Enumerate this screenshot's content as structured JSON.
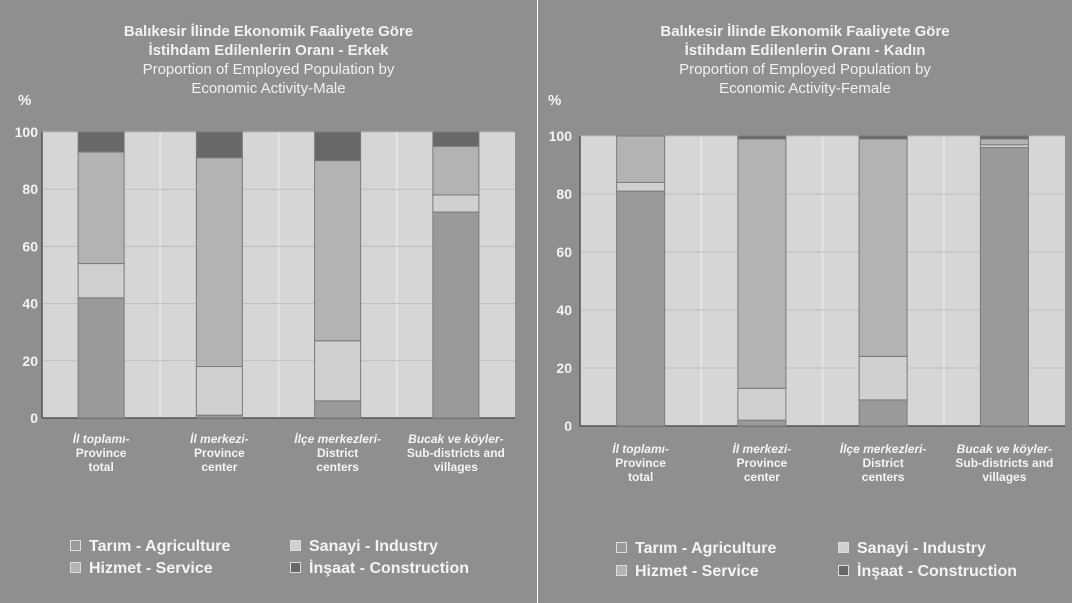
{
  "y_axis_symbol": "%",
  "colors": {
    "agriculture": "#9a9a9a",
    "industry": "#d0d0d0",
    "service": "#b3b3b3",
    "construction": "#686868",
    "plot_bg": "#d6d6d6"
  },
  "legend": {
    "agriculture": "Tarım - Agriculture",
    "industry": "Sanayi - Industry",
    "service": "Hizmet - Service",
    "construction": "İnşaat - Construction"
  },
  "chart_data": [
    {
      "type": "bar",
      "stacked": true,
      "title_tr_line1": "Balıkesir İlinde Ekonomik Faaliyete Göre",
      "title_tr_line2": "İstihdam Edilenlerin Oranı - Erkek",
      "title_en_line1": "Proportion of Employed Population by",
      "title_en_line2": "Economic Activity-Male",
      "ylim": [
        0,
        100
      ],
      "y_ticks": [
        "0",
        "20",
        "40",
        "60",
        "80",
        "100"
      ],
      "categories": [
        {
          "tr": "İl toplamı-",
          "en1": "Province",
          "en2": "total"
        },
        {
          "tr": "İl merkezi-",
          "en1": "Province",
          "en2": "center"
        },
        {
          "tr": "İlçe merkezleri-",
          "en1": "District",
          "en2": "centers"
        },
        {
          "tr": "Bucak ve köyler-",
          "en1": "Sub-districts and",
          "en2": "villages"
        }
      ],
      "series": [
        {
          "name": "Tarım - Agriculture",
          "values": [
            42,
            1,
            6,
            72
          ]
        },
        {
          "name": "Sanayi - Industry",
          "values": [
            12,
            17,
            21,
            6
          ]
        },
        {
          "name": "Hizmet - Service",
          "values": [
            39,
            73,
            63,
            17
          ]
        },
        {
          "name": "İnşaat - Construction",
          "values": [
            7,
            9,
            10,
            5
          ]
        }
      ]
    },
    {
      "type": "bar",
      "stacked": true,
      "title_tr_line1": "Balıkesir İlinde Ekonomik Faaliyete Göre",
      "title_tr_line2": "İstihdam Edilenlerin Oranı - Kadın",
      "title_en_line1": "Proportion of Employed Population by",
      "title_en_line2": "Economic Activity-Female",
      "ylim": [
        0,
        100
      ],
      "y_ticks": [
        "0",
        "20",
        "40",
        "60",
        "80",
        "100"
      ],
      "categories": [
        {
          "tr": "İl toplamı-",
          "en1": "Province",
          "en2": "total"
        },
        {
          "tr": "İl merkezi-",
          "en1": "Province",
          "en2": "center"
        },
        {
          "tr": "İlçe merkezleri-",
          "en1": "District",
          "en2": "centers"
        },
        {
          "tr": "Bucak ve köyler-",
          "en1": "Sub-districts and",
          "en2": "villages"
        }
      ],
      "series": [
        {
          "name": "Tarım - Agriculture",
          "values": [
            81,
            2,
            9,
            96
          ]
        },
        {
          "name": "Sanayi - Industry",
          "values": [
            3,
            11,
            15,
            1
          ]
        },
        {
          "name": "Hizmet - Service",
          "values": [
            16,
            86,
            75,
            2
          ]
        },
        {
          "name": "İnşaat - Construction",
          "values": [
            0,
            1,
            1,
            1
          ]
        }
      ]
    }
  ]
}
